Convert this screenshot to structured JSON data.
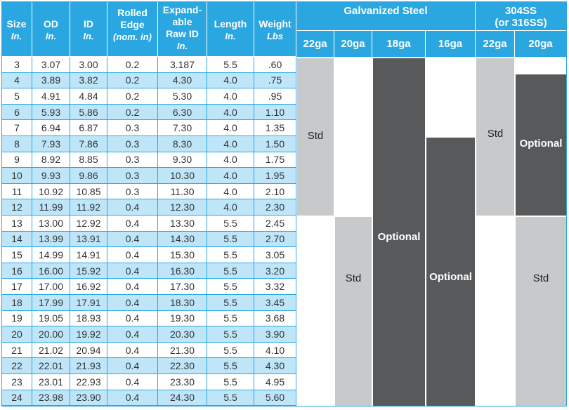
{
  "headers": {
    "size": {
      "label": "Size",
      "unit": "In."
    },
    "od": {
      "label": "OD",
      "unit": "In."
    },
    "id": {
      "label": "ID",
      "unit": "In."
    },
    "rolled": {
      "label1": "Rolled",
      "label2": "Edge",
      "unit": "(nom. in)"
    },
    "expand": {
      "label1": "Expand-",
      "label2": "able",
      "label3": "Raw ID",
      "unit": "In."
    },
    "length": {
      "label": "Length",
      "unit": "In."
    },
    "weight": {
      "label": "Weight",
      "unit": "Lbs"
    },
    "galv": "Galvanized Steel",
    "ss1": "304SS",
    "ss2": "(or 316SS)",
    "gauges": [
      "22ga",
      "20ga",
      "18ga",
      "16ga",
      "22ga",
      "20ga"
    ]
  },
  "rows": [
    [
      "3",
      "3.07",
      "3.00",
      "0.2",
      "3.187",
      "5.5",
      ".60"
    ],
    [
      "4",
      "3.89",
      "3.82",
      "0.2",
      "4.30",
      "4.0",
      ".75"
    ],
    [
      "5",
      "4.91",
      "4.84",
      "0.2",
      "5.30",
      "4.0",
      ".95"
    ],
    [
      "6",
      "5.93",
      "5.86",
      "0.2",
      "6.30",
      "4.0",
      "1.10"
    ],
    [
      "7",
      "6.94",
      "6.87",
      "0.3",
      "7.30",
      "4.0",
      "1.35"
    ],
    [
      "8",
      "7.93",
      "7.86",
      "0.3",
      "8.30",
      "4.0",
      "1.50"
    ],
    [
      "9",
      "8.92",
      "8.85",
      "0.3",
      "9.30",
      "4.0",
      "1.75"
    ],
    [
      "10",
      "9.93",
      "9.86",
      "0.3",
      "10.30",
      "4.0",
      "1.95"
    ],
    [
      "11",
      "10.92",
      "10.85",
      "0.3",
      "11.30",
      "4.0",
      "2.10"
    ],
    [
      "12",
      "11.99",
      "11.92",
      "0.4",
      "12.30",
      "4.0",
      "2.30"
    ],
    [
      "13",
      "13.00",
      "12.92",
      "0.4",
      "13.30",
      "5.5",
      "2.45"
    ],
    [
      "14",
      "13.99",
      "13.91",
      "0.4",
      "14.30",
      "5.5",
      "2.70"
    ],
    [
      "15",
      "14.99",
      "14.91",
      "0.4",
      "15.30",
      "5.5",
      "3.05"
    ],
    [
      "16",
      "16.00",
      "15.92",
      "0.4",
      "16.30",
      "5.5",
      "3.20"
    ],
    [
      "17",
      "17.00",
      "16.92",
      "0.4",
      "17.30",
      "5.5",
      "3.32"
    ],
    [
      "18",
      "17.99",
      "17.91",
      "0.4",
      "18.30",
      "5.5",
      "3.45"
    ],
    [
      "19",
      "19.05",
      "18.93",
      "0.4",
      "19.30",
      "5.5",
      "3.68"
    ],
    [
      "20",
      "20.00",
      "19.92",
      "0.4",
      "20.30",
      "5.5",
      "3.90"
    ],
    [
      "21",
      "21.02",
      "20.94",
      "0.4",
      "21.30",
      "5.5",
      "4.10"
    ],
    [
      "22",
      "22.01",
      "21.93",
      "0.4",
      "22.30",
      "5.5",
      "4.30"
    ],
    [
      "23",
      "23.01",
      "22.93",
      "0.4",
      "23.30",
      "5.5",
      "4.95"
    ],
    [
      "24",
      "23.98",
      "23.90",
      "0.4",
      "24.30",
      "5.5",
      "5.60"
    ]
  ],
  "availability": {
    "std": "Std",
    "optional": "Optional"
  },
  "colors": {
    "header": "#2aa7e1",
    "row_stripe": "#bfe6f8",
    "std_gray": "#c8c9cb",
    "optional_dark": "#58595b"
  }
}
